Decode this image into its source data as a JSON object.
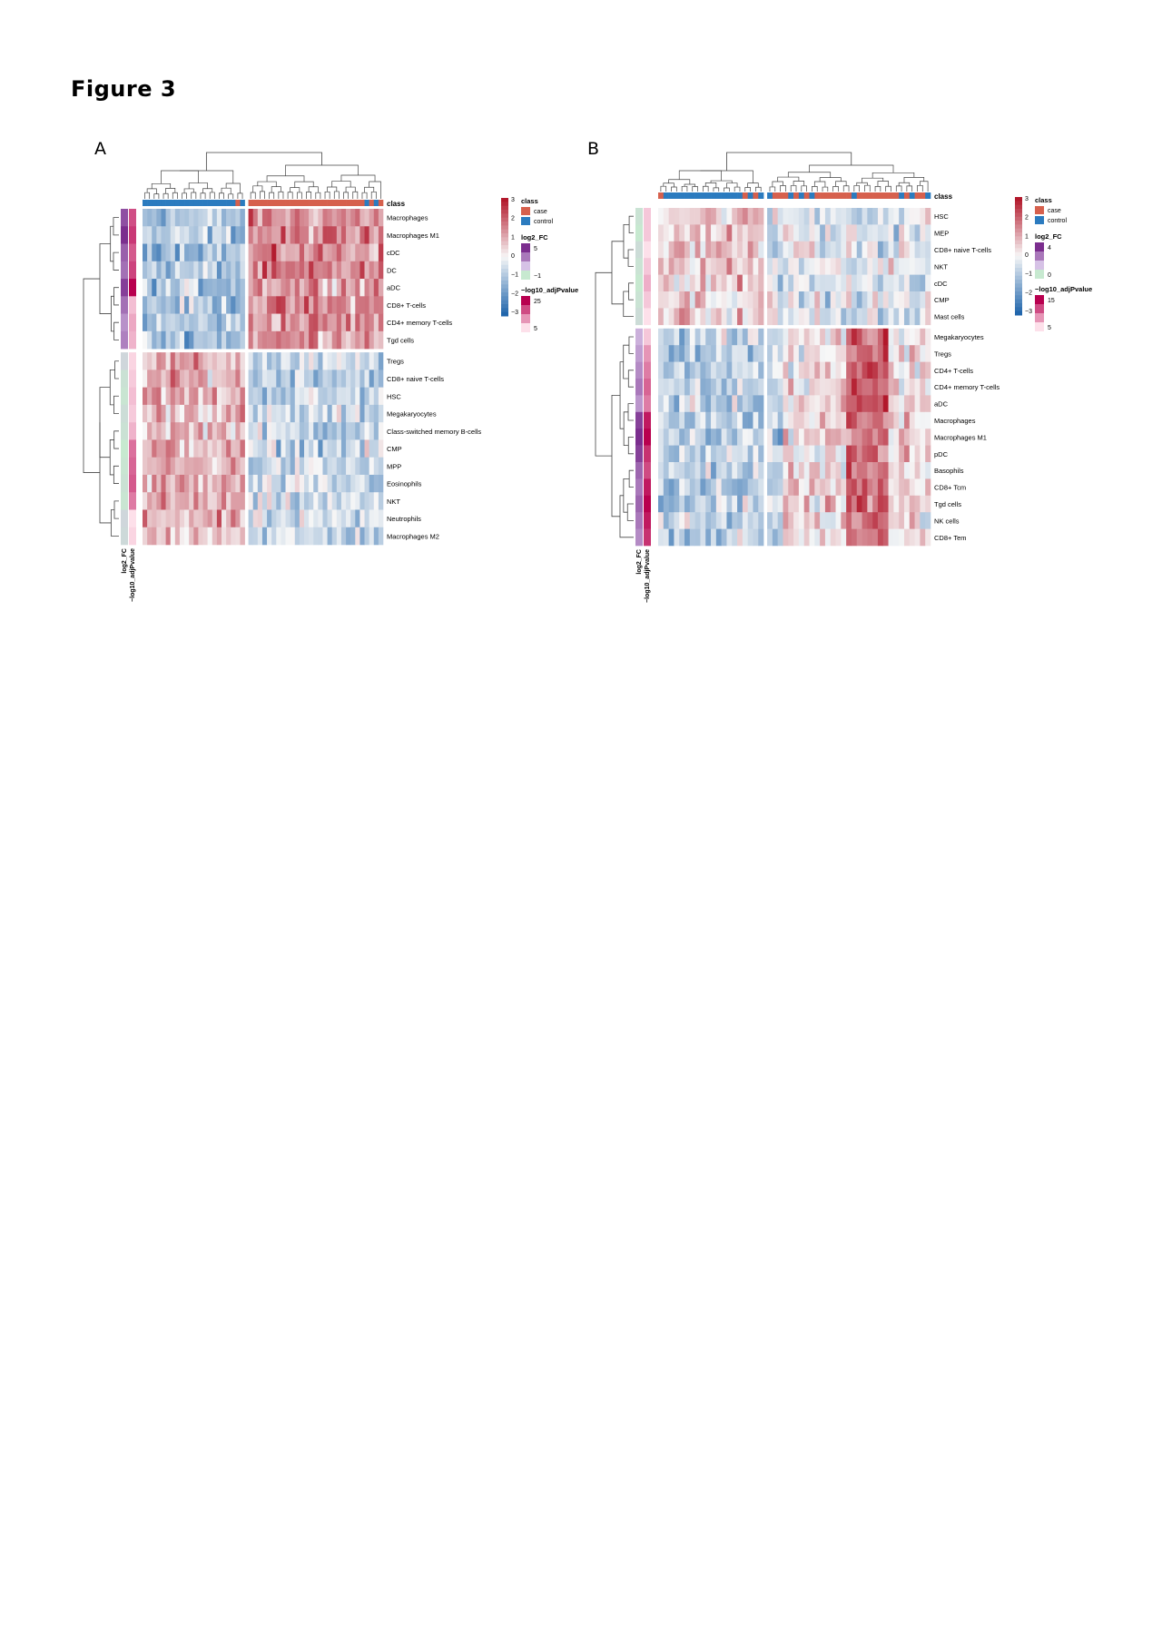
{
  "figure_title": "Figure 3",
  "colors": {
    "case": "#d6604d",
    "control": "#2b7bbf",
    "heat_low": "#2166ac",
    "heat_mid": "#f7f7f7",
    "heat_high": "#b2182b",
    "fc_high": "#7b2e8e",
    "fc_mid": "#d6c2e6",
    "fc_low": "#c7e9d0",
    "p_high": "#b8004f",
    "p_low": "#fde0ea",
    "tree": "#444444"
  },
  "chart_data": [
    {
      "panel": "A",
      "type": "heatmap",
      "rows": [
        "Macrophages",
        "Macrophages M1",
        "cDC",
        "DC",
        "aDC",
        "CD8+ T-cells",
        "CD4+ memory T-cells",
        "Tgd cells",
        "Tregs",
        "CD8+ naive T-cells",
        "HSC",
        "Megakaryocytes",
        "Class-switched memory B-cells",
        "CMP",
        "MPP",
        "Eosinophils",
        "NKT",
        "Neutrophils",
        "Macrophages M2"
      ],
      "row_groups": [
        8,
        11
      ],
      "column_classes": {
        "control": 22,
        "case": 29
      },
      "log2_fc": [
        3.5,
        4.5,
        3.0,
        2.5,
        4.0,
        2.5,
        1.5,
        2.0,
        -0.5,
        -0.8,
        -0.9,
        -0.7,
        -0.8,
        -1.0,
        -0.9,
        -0.8,
        -0.9,
        -0.5,
        -0.6
      ],
      "neg_log10_adjPvalue": [
        18,
        20,
        17,
        19,
        25,
        8,
        10,
        9,
        6,
        7,
        8,
        7,
        9,
        15,
        16,
        17,
        14,
        5,
        6
      ],
      "case_up_top": true,
      "legend": {
        "class_title": "class",
        "class_items": [
          "case",
          "control"
        ],
        "scale_ticks": [
          "3",
          "2",
          "1",
          "0",
          "−1",
          "−2",
          "−3"
        ],
        "fc_title": "log2_FC",
        "fc_ticks": [
          "5",
          "−1"
        ],
        "p_title": "−log10_adjPvalue",
        "p_ticks": [
          "25",
          "5"
        ]
      },
      "annotation_labels": [
        "log2_FC",
        "−log10_adjPvalue"
      ],
      "class_row_label": "class"
    },
    {
      "panel": "B",
      "type": "heatmap",
      "rows": [
        "HSC",
        "MEP",
        "CD8+ naive T-cells",
        "NKT",
        "cDC",
        "CMP",
        "Mast cells",
        "Megakaryocytes",
        "Tregs",
        "CD4+ T-cells",
        "CD4+ memory T-cells",
        "aDC",
        "Macrophages",
        "Macrophages M1",
        "pDC",
        "Basophils",
        "CD8+ Tcm",
        "Tgd cells",
        "NK cells",
        "CD8+ Tem"
      ],
      "row_groups": [
        7,
        13
      ],
      "column_classes": {
        "control": 20,
        "case": 31
      },
      "log2_fc": [
        -0.5,
        -0.6,
        -0.4,
        -0.5,
        -0.6,
        -0.5,
        -0.4,
        0.5,
        1.0,
        1.5,
        2.0,
        1.2,
        3.5,
        4.0,
        3.5,
        2.5,
        2.0,
        2.5,
        2.0,
        1.5
      ],
      "neg_log10_adjPvalue": [
        6,
        6,
        5,
        6,
        7,
        6,
        5,
        6,
        8,
        9,
        10,
        9,
        13,
        14,
        12,
        11,
        13,
        14,
        13,
        12
      ],
      "case_up_top": false,
      "legend": {
        "class_title": "class",
        "class_items": [
          "case",
          "control"
        ],
        "scale_ticks": [
          "3",
          "2",
          "1",
          "0",
          "−1",
          "−2",
          "−3"
        ],
        "fc_title": "log2_FC",
        "fc_ticks": [
          "4",
          "0"
        ],
        "p_title": "−log10_adjPvalue",
        "p_ticks": [
          "15",
          "5"
        ]
      },
      "annotation_labels": [
        "log2_FC",
        "−log10_adjPvalue"
      ],
      "class_row_label": "class"
    }
  ]
}
